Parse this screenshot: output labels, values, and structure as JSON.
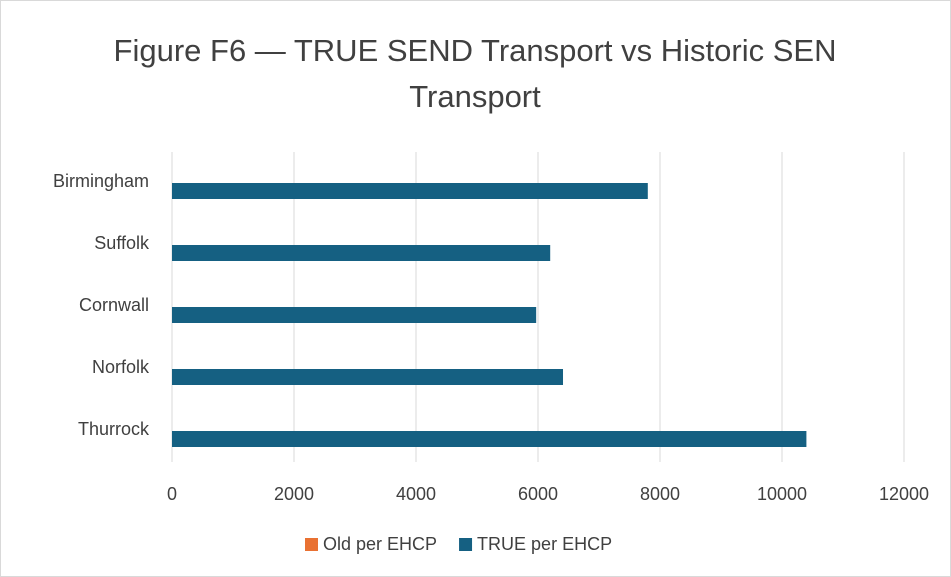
{
  "chart_data": {
    "type": "bar",
    "orientation": "horizontal",
    "title": "Figure F6 — TRUE SEND Transport vs Historic SEN Transport",
    "categories": [
      "Birmingham",
      "Suffolk",
      "Cornwall",
      "Norfolk",
      "Thurrock"
    ],
    "series": [
      {
        "name": "Old per EHCP",
        "color": "#e97132",
        "values": [
          0,
          0,
          0,
          0,
          0
        ]
      },
      {
        "name": "TRUE per EHCP",
        "color": "#156082",
        "values": [
          7800,
          6200,
          5970,
          6410,
          10400
        ]
      }
    ],
    "xlim": [
      0,
      12000
    ],
    "xticks": [
      0,
      2000,
      4000,
      6000,
      8000,
      10000,
      12000
    ],
    "grid": true,
    "legend": "bottom"
  }
}
